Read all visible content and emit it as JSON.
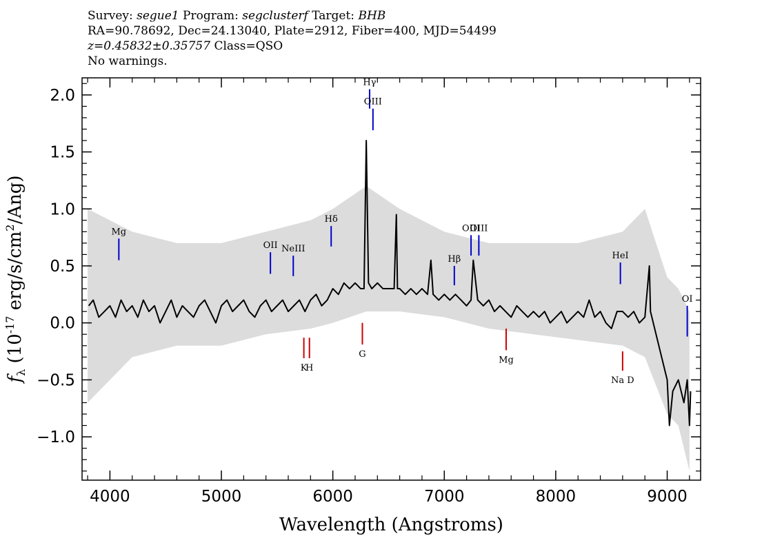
{
  "header": {
    "survey_label": "Survey:",
    "survey": "segue1",
    "program_label": "Program:",
    "program": "segclusterf",
    "target_label": "Target:",
    "target": "BHB",
    "line2": "RA=90.78692, Dec=24.13040, Plate=2912, Fiber=400, MJD=54499",
    "redshift": "z=0.45832±0.35757",
    "class": "Class=QSO",
    "warnings": "No warnings."
  },
  "chart_data": {
    "type": "line",
    "xlabel": "Wavelength (Angstroms)",
    "ylabel_prefix": "f",
    "ylabel_sub": "λ",
    "ylabel_rest": " (10",
    "ylabel_exp": "-17",
    "ylabel_units": " erg/s/cm",
    "ylabel_exp2": "2",
    "ylabel_end": "/Ang)",
    "xlim": [
      3750,
      9300
    ],
    "ylim": [
      -1.38,
      2.15
    ],
    "x_ticks": [
      4000,
      5000,
      6000,
      7000,
      8000,
      9000
    ],
    "x_tick_labels": [
      "4000",
      "5000",
      "6000",
      "7000",
      "8000",
      "9000"
    ],
    "y_ticks": [
      -1.0,
      -0.5,
      0.0,
      0.5,
      1.0,
      1.5,
      2.0
    ],
    "y_tick_labels": [
      "−1.0",
      "−0.5",
      "0.0",
      "0.5",
      "1.0",
      "1.5",
      "2.0"
    ],
    "colors": {
      "flux": "#000000",
      "error": "#c0c0c0",
      "emission": "#0000cc",
      "absorption": "#cc0000"
    },
    "series": [
      {
        "name": "flux (smoothed)",
        "x": [
          3810,
          3850,
          3900,
          3950,
          4000,
          4050,
          4100,
          4150,
          4200,
          4250,
          4300,
          4350,
          4400,
          4450,
          4500,
          4550,
          4600,
          4650,
          4700,
          4750,
          4800,
          4850,
          4900,
          4950,
          5000,
          5050,
          5100,
          5150,
          5200,
          5250,
          5300,
          5350,
          5400,
          5450,
          5500,
          5550,
          5600,
          5650,
          5700,
          5750,
          5800,
          5850,
          5900,
          5950,
          6000,
          6050,
          6100,
          6150,
          6200,
          6250,
          6280,
          6300,
          6320,
          6350,
          6400,
          6450,
          6500,
          6550,
          6570,
          6580,
          6600,
          6650,
          6700,
          6750,
          6800,
          6850,
          6880,
          6900,
          6950,
          7000,
          7050,
          7100,
          7150,
          7200,
          7240,
          7260,
          7300,
          7350,
          7400,
          7450,
          7500,
          7550,
          7600,
          7650,
          7700,
          7750,
          7800,
          7850,
          7900,
          7950,
          8000,
          8050,
          8100,
          8150,
          8200,
          8250,
          8300,
          8350,
          8400,
          8450,
          8500,
          8550,
          8600,
          8650,
          8700,
          8750,
          8800,
          8840,
          8850,
          8900,
          8950,
          9000,
          9020,
          9050,
          9100,
          9150,
          9180,
          9200,
          9210
        ],
        "y": [
          0.15,
          0.2,
          0.05,
          0.1,
          0.15,
          0.05,
          0.2,
          0.1,
          0.15,
          0.05,
          0.2,
          0.1,
          0.15,
          0.0,
          0.1,
          0.2,
          0.05,
          0.15,
          0.1,
          0.05,
          0.15,
          0.2,
          0.1,
          0.0,
          0.15,
          0.2,
          0.1,
          0.15,
          0.2,
          0.1,
          0.05,
          0.15,
          0.2,
          0.1,
          0.15,
          0.2,
          0.1,
          0.15,
          0.2,
          0.1,
          0.2,
          0.25,
          0.15,
          0.2,
          0.3,
          0.25,
          0.35,
          0.3,
          0.35,
          0.3,
          0.3,
          1.6,
          0.35,
          0.3,
          0.35,
          0.3,
          0.3,
          0.3,
          0.95,
          0.3,
          0.3,
          0.25,
          0.3,
          0.25,
          0.3,
          0.25,
          0.55,
          0.25,
          0.2,
          0.25,
          0.2,
          0.25,
          0.2,
          0.15,
          0.2,
          0.55,
          0.2,
          0.15,
          0.2,
          0.1,
          0.15,
          0.1,
          0.05,
          0.15,
          0.1,
          0.05,
          0.1,
          0.05,
          0.1,
          0.0,
          0.05,
          0.1,
          0.0,
          0.05,
          0.1,
          0.05,
          0.2,
          0.05,
          0.1,
          0.0,
          -0.05,
          0.1,
          0.1,
          0.05,
          0.1,
          0.0,
          0.05,
          0.5,
          0.1,
          -0.1,
          -0.3,
          -0.5,
          -0.9,
          -0.6,
          -0.5,
          -0.7,
          -0.5,
          -0.9,
          -0.6
        ]
      },
      {
        "name": "error band",
        "x": [
          3800,
          4200,
          4600,
          5000,
          5400,
          5800,
          6000,
          6300,
          6600,
          7000,
          7400,
          7800,
          8200,
          8600,
          8800,
          9000,
          9100,
          9200
        ],
        "y_low": [
          -0.7,
          -0.3,
          -0.2,
          -0.2,
          -0.1,
          -0.05,
          0.0,
          0.1,
          0.1,
          0.05,
          -0.05,
          -0.1,
          -0.15,
          -0.2,
          -0.3,
          -0.8,
          -0.9,
          -1.3
        ],
        "y_high": [
          1.0,
          0.8,
          0.7,
          0.7,
          0.8,
          0.9,
          1.0,
          1.2,
          1.0,
          0.8,
          0.7,
          0.7,
          0.7,
          0.8,
          1.0,
          0.4,
          0.3,
          0.1
        ]
      }
    ],
    "emission_lines": [
      {
        "label": "Mg",
        "x": 4080,
        "y_top": 0.74,
        "y_bottom": 0.55
      },
      {
        "label": "OII",
        "x": 5440,
        "y_top": 0.62,
        "y_bottom": 0.43
      },
      {
        "label": "NeIII",
        "x": 5645,
        "y_top": 0.59,
        "y_bottom": 0.41
      },
      {
        "label": "Hδ",
        "x": 5985,
        "y_top": 0.85,
        "y_bottom": 0.67
      },
      {
        "label": "Hγ",
        "x": 6330,
        "y_top": 2.05,
        "y_bottom": 1.88
      },
      {
        "label": "OIII",
        "x": 6360,
        "y_top": 1.88,
        "y_bottom": 1.69
      },
      {
        "label": "Hβ",
        "x": 7090,
        "y_top": 0.5,
        "y_bottom": 0.33
      },
      {
        "label": "OIII",
        "x": 7240,
        "y_top": 0.77,
        "y_bottom": 0.59
      },
      {
        "label": "OIII",
        "x": 7310,
        "y_top": 0.77,
        "y_bottom": 0.59
      },
      {
        "label": "HeI",
        "x": 8580,
        "y_top": 0.53,
        "y_bottom": 0.34
      },
      {
        "label": "OI",
        "x": 9180,
        "y_top": 0.15,
        "y_bottom": -0.12
      }
    ],
    "absorption_lines": [
      {
        "label": "K",
        "x": 5740,
        "y_top": -0.13,
        "y_bottom": -0.31
      },
      {
        "label": "H",
        "x": 5790,
        "y_top": -0.13,
        "y_bottom": -0.31
      },
      {
        "label": "G",
        "x": 6265,
        "y_top": 0.0,
        "y_bottom": -0.19
      },
      {
        "label": "Mg",
        "x": 7555,
        "y_top": -0.05,
        "y_bottom": -0.24
      },
      {
        "label": "Na D",
        "x": 8600,
        "y_top": -0.25,
        "y_bottom": -0.42
      }
    ]
  }
}
